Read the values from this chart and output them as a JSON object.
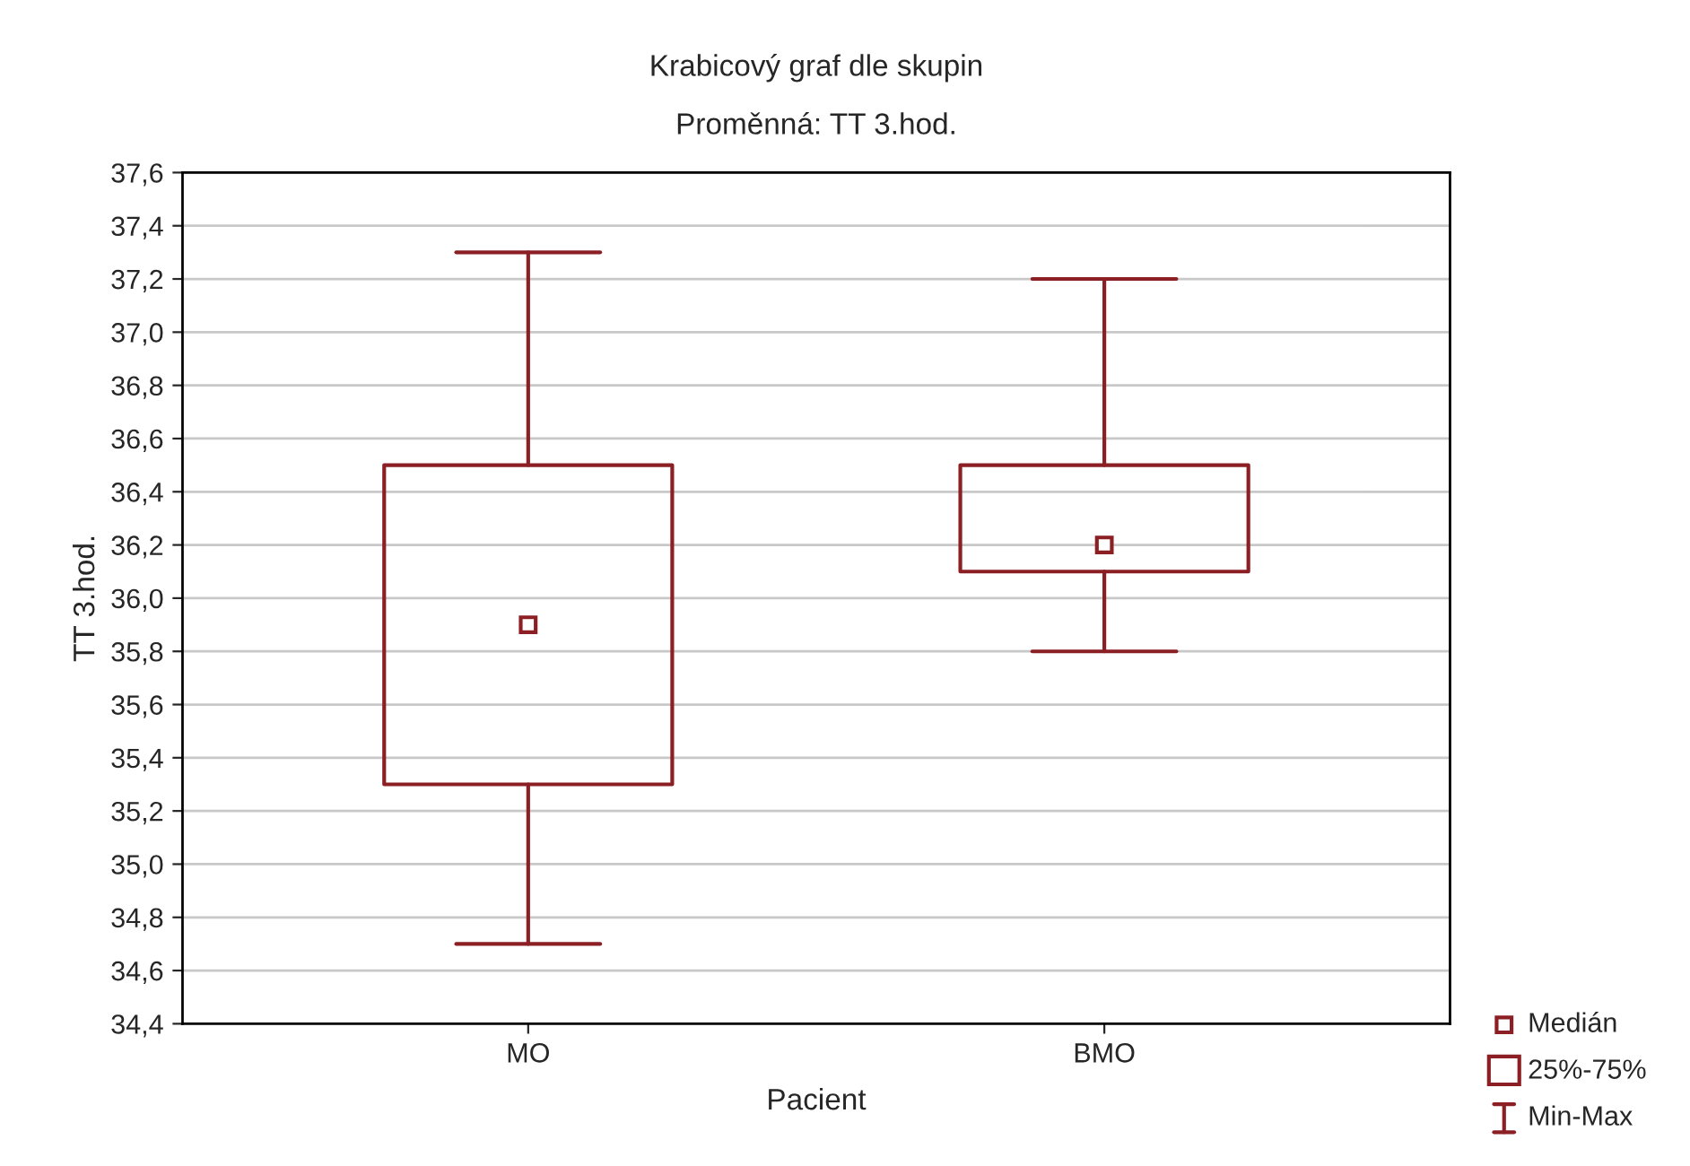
{
  "chart_data": {
    "type": "box",
    "title": "Krabicový graf dle skupin",
    "subtitle": "Proměnná: TT 3.hod.",
    "xlabel": "Pacient",
    "ylabel": "TT 3.hod.",
    "categories": [
      "MO",
      "BMO"
    ],
    "series": [
      {
        "color": "#8b1f24",
        "boxes": [
          {
            "low": 34.7,
            "q1": 35.3,
            "median": 35.9,
            "q3": 36.5,
            "high": 37.3
          },
          {
            "low": 35.8,
            "q1": 36.1,
            "median": 36.2,
            "q3": 36.5,
            "high": 37.2
          }
        ]
      }
    ],
    "ylim": [
      34.4,
      37.6
    ],
    "yticks": [
      {
        "value": 34.4,
        "label": "34,4"
      },
      {
        "value": 34.6,
        "label": "34,6"
      },
      {
        "value": 34.8,
        "label": "34,8"
      },
      {
        "value": 35.0,
        "label": "35,0"
      },
      {
        "value": 35.2,
        "label": "35,2"
      },
      {
        "value": 35.4,
        "label": "35,4"
      },
      {
        "value": 35.6,
        "label": "35,6"
      },
      {
        "value": 35.8,
        "label": "35,8"
      },
      {
        "value": 36.0,
        "label": "36,0"
      },
      {
        "value": 36.2,
        "label": "36,2"
      },
      {
        "value": 36.4,
        "label": "36,4"
      },
      {
        "value": 36.6,
        "label": "36,6"
      },
      {
        "value": 36.8,
        "label": "36,8"
      },
      {
        "value": 37.0,
        "label": "37,0"
      },
      {
        "value": 37.2,
        "label": "37,2"
      },
      {
        "value": 37.4,
        "label": "37,4"
      },
      {
        "value": 37.6,
        "label": "37,6"
      }
    ],
    "grid": "y",
    "marker": "square",
    "annotations": [
      "Medián",
      "25%-75%",
      "Min-Max"
    ]
  }
}
